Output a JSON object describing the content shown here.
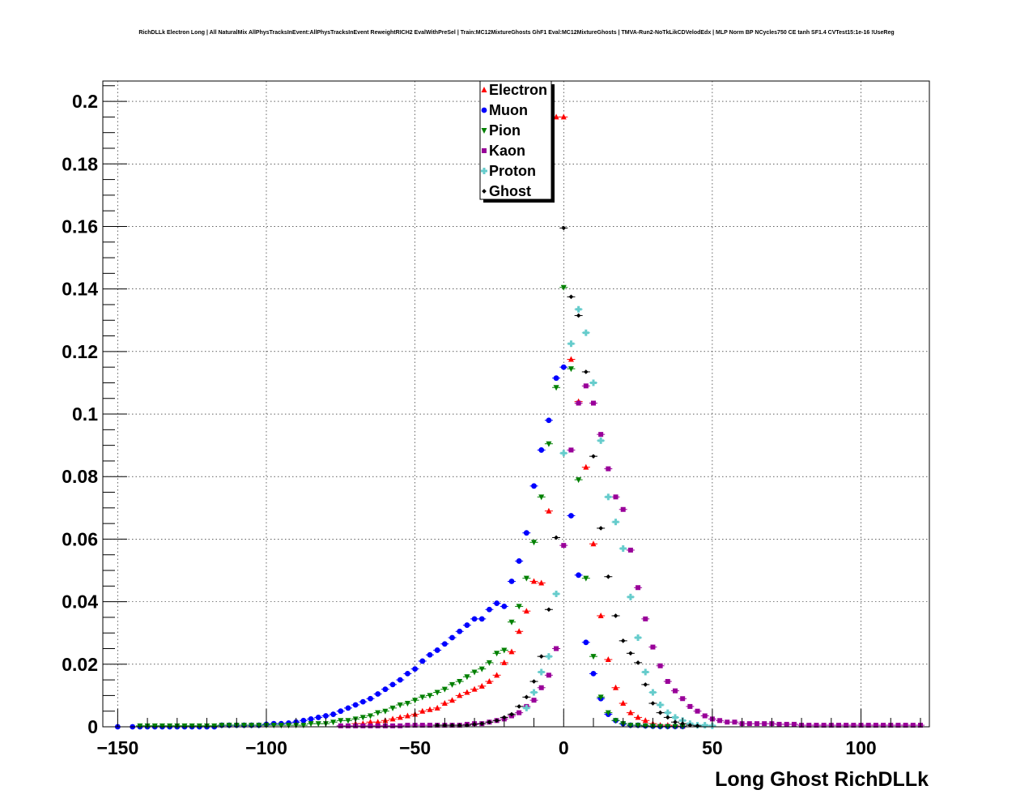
{
  "title": "RichDLLk Electron Long | All NaturalMix AllPhysTracksInEvent:AllPhysTracksInEvent ReweightRICH2 EvalWithPreSel | Train:MC12MixtureGhosts GhF1 Eval:MC12MixtureGhosts | TMVA-Run2-NoTkLikCDVelodEdx | MLP Norm BP NCycles750 CE tanh SF1.4 CVTest15:1e-16 !UseReg",
  "chart_data": {
    "type": "scatter",
    "title": "RichDLLk Electron Long | All NaturalMix AllPhysTracksInEvent:AllPhysTracksInEvent ReweightRICH2 EvalWithPreSel | Train:MC12MixtureGhosts GhF1 Eval:MC12MixtureGhosts | TMVA-Run2-NoTkLikCDVelodEdx | MLP Norm BP NCycles750 CE tanh SF1.4 CVTest15:1e-16 !UseReg",
    "xlabel": "Long Ghost RichDLLk",
    "ylabel": "",
    "xlim": [
      -155,
      123
    ],
    "ylim": [
      0,
      0.2065
    ],
    "grid": true,
    "legend_position": "top-center",
    "x_ticks": [
      -150,
      -100,
      -50,
      0,
      50,
      100
    ],
    "x_tick_labels": [
      "−150",
      "−100",
      "−50",
      "0",
      "50",
      "100"
    ],
    "y_ticks": [
      0,
      0.02,
      0.04,
      0.06,
      0.08,
      0.1,
      0.12,
      0.14,
      0.16,
      0.18,
      0.2
    ],
    "y_tick_labels": [
      "0",
      "0.02",
      "0.04",
      "0.06",
      "0.08",
      "0.1",
      "0.12",
      "0.14",
      "0.16",
      "0.18",
      "0.2"
    ],
    "series": [
      {
        "name": "Electron",
        "color": "#ff0000",
        "marker": "triangle-up",
        "x": [
          -70,
          -67.5,
          -65,
          -62.5,
          -60,
          -57.5,
          -55,
          -52.5,
          -50,
          -47.5,
          -45,
          -42.5,
          -40,
          -37.5,
          -35,
          -32.5,
          -30,
          -27.5,
          -25,
          -22.5,
          -20,
          -17.5,
          -15,
          -12.5,
          -10,
          -7.5,
          -5,
          -2.5,
          0,
          2.5,
          5,
          7.5,
          10,
          12.5,
          15,
          17.5,
          20,
          22.5,
          25,
          27.5,
          30,
          32.5,
          35,
          37.5,
          40
        ],
        "y": [
          0.001,
          0.001,
          0.0015,
          0.0015,
          0.002,
          0.0025,
          0.003,
          0.0035,
          0.004,
          0.005,
          0.0055,
          0.006,
          0.0075,
          0.0085,
          0.01,
          0.011,
          0.012,
          0.013,
          0.0145,
          0.0165,
          0.0205,
          0.024,
          0.0305,
          0.037,
          0.0465,
          0.046,
          0.069,
          0.195,
          0.195,
          0.1175,
          0.104,
          0.083,
          0.0585,
          0.0355,
          0.0215,
          0.0125,
          0.0075,
          0.0045,
          0.003,
          0.002,
          0.001,
          0.0005,
          0.0005,
          0.0003,
          0.0002
        ]
      },
      {
        "name": "Muon",
        "color": "#0000ff",
        "marker": "circle",
        "x": [
          -150,
          -145,
          -142.5,
          -140,
          -137.5,
          -135,
          -132.5,
          -130,
          -127.5,
          -125,
          -122.5,
          -120,
          -117.5,
          -115,
          -112.5,
          -110,
          -107.5,
          -105,
          -102.5,
          -100,
          -97.5,
          -95,
          -92.5,
          -90,
          -87.5,
          -85,
          -82.5,
          -80,
          -77.5,
          -75,
          -72.5,
          -70,
          -67.5,
          -65,
          -62.5,
          -60,
          -57.5,
          -55,
          -52.5,
          -50,
          -47.5,
          -45,
          -42.5,
          -40,
          -37.5,
          -35,
          -32.5,
          -30,
          -27.5,
          -25,
          -22.5,
          -20,
          -17.5,
          -15,
          -12.5,
          -10,
          -7.5,
          -5,
          -2.5,
          0,
          2.5,
          5,
          7.5,
          10,
          12.5,
          15,
          17.5,
          20,
          22.5,
          25,
          27.5,
          30,
          32.5,
          35,
          37.5,
          40
        ],
        "y": [
          0,
          0,
          0,
          0,
          0,
          0,
          0,
          0,
          0,
          0,
          0,
          0,
          0,
          0.0005,
          0.0005,
          0.0005,
          0.0005,
          0.0005,
          0.0005,
          0.0008,
          0.001,
          0.001,
          0.0012,
          0.0015,
          0.002,
          0.0025,
          0.003,
          0.0035,
          0.004,
          0.005,
          0.006,
          0.007,
          0.008,
          0.009,
          0.0105,
          0.012,
          0.0135,
          0.015,
          0.017,
          0.0185,
          0.021,
          0.023,
          0.0245,
          0.0265,
          0.0285,
          0.0305,
          0.0325,
          0.0345,
          0.0345,
          0.0375,
          0.0395,
          0.0385,
          0.0465,
          0.053,
          0.062,
          0.077,
          0.0885,
          0.098,
          0.1115,
          0.115,
          0.0675,
          0.0485,
          0.027,
          0.017,
          0.009,
          0.004,
          0.002,
          0.001,
          0.0005,
          0.0005,
          0.0003,
          0.0002,
          0.0001,
          0.0001,
          0.0001,
          0.0001
        ]
      },
      {
        "name": "Pion",
        "color": "#008000",
        "marker": "triangle-down",
        "x": [
          -142.5,
          -140,
          -137.5,
          -135,
          -132.5,
          -130,
          -127.5,
          -125,
          -122.5,
          -120,
          -117.5,
          -115,
          -112.5,
          -110,
          -107.5,
          -105,
          -102.5,
          -100,
          -97.5,
          -95,
          -92.5,
          -90,
          -87.5,
          -85,
          -82.5,
          -80,
          -77.5,
          -75,
          -72.5,
          -70,
          -67.5,
          -65,
          -62.5,
          -60,
          -57.5,
          -55,
          -52.5,
          -50,
          -47.5,
          -45,
          -42.5,
          -40,
          -37.5,
          -35,
          -32.5,
          -30,
          -27.5,
          -25,
          -22.5,
          -20,
          -17.5,
          -15,
          -12.5,
          -10,
          -7.5,
          -5,
          -2.5,
          0,
          2.5,
          5,
          7.5,
          10,
          12.5,
          15,
          17.5,
          20,
          22.5,
          25,
          27.5,
          30,
          32.5,
          35,
          37.5,
          40
        ],
        "y": [
          0.0003,
          0.0003,
          0.0003,
          0.0003,
          0.0003,
          0.0003,
          0.0003,
          0.0003,
          0.0003,
          0.0003,
          0.0003,
          0.0005,
          0.0005,
          0.0005,
          0.0005,
          0.0005,
          0.0005,
          0.0005,
          0.0005,
          0.0005,
          0.0005,
          0.0005,
          0.0005,
          0.001,
          0.001,
          0.001,
          0.0015,
          0.002,
          0.002,
          0.0025,
          0.003,
          0.0035,
          0.0045,
          0.005,
          0.006,
          0.007,
          0.0075,
          0.0085,
          0.0095,
          0.01,
          0.011,
          0.012,
          0.0135,
          0.0145,
          0.016,
          0.0175,
          0.0185,
          0.0205,
          0.0235,
          0.0245,
          0.0335,
          0.0385,
          0.0475,
          0.059,
          0.0735,
          0.0905,
          0.1085,
          0.1405,
          0.1145,
          0.079,
          0.0475,
          0.0225,
          0.0095,
          0.0045,
          0.002,
          0.001,
          0.0005,
          0.0005,
          0.0003,
          0.0002,
          0.0001,
          0.0001,
          0.0001,
          0.0001
        ]
      },
      {
        "name": "Kaon",
        "color": "#990099",
        "marker": "square",
        "x": [
          -75,
          -72.5,
          -70,
          -67.5,
          -65,
          -62.5,
          -60,
          -57.5,
          -55,
          -52.5,
          -50,
          -47.5,
          -45,
          -42.5,
          -40,
          -37.5,
          -35,
          -32.5,
          -30,
          -27.5,
          -25,
          -22.5,
          -20,
          -17.5,
          -15,
          -12.5,
          -10,
          -7.5,
          -5,
          -2.5,
          0,
          2.5,
          5,
          7.5,
          10,
          12.5,
          15,
          17.5,
          20,
          22.5,
          25,
          27.5,
          30,
          32.5,
          35,
          37.5,
          40,
          42.5,
          45,
          47.5,
          50,
          52.5,
          55,
          57.5,
          60,
          62.5,
          65,
          67.5,
          70,
          72.5,
          75,
          77.5,
          80,
          82.5,
          85,
          87.5,
          90,
          92.5,
          95,
          97.5,
          100,
          102.5,
          105,
          107.5,
          110,
          112.5,
          115,
          117.5,
          120
        ],
        "y": [
          0.0003,
          0.0003,
          0.0003,
          0.0003,
          0.0003,
          0.0003,
          0.0003,
          0.0003,
          0.0003,
          0.0005,
          0.0005,
          0.0005,
          0.0005,
          0.0005,
          0.0005,
          0.0005,
          0.0005,
          0.0008,
          0.001,
          0.001,
          0.0015,
          0.002,
          0.0025,
          0.0035,
          0.0045,
          0.0065,
          0.0085,
          0.0125,
          0.0165,
          0.025,
          0.058,
          0.0885,
          0.1035,
          0.109,
          0.1035,
          0.0935,
          0.0825,
          0.0735,
          0.0695,
          0.0565,
          0.0445,
          0.0345,
          0.0255,
          0.0195,
          0.0145,
          0.0115,
          0.009,
          0.0065,
          0.005,
          0.0035,
          0.0025,
          0.002,
          0.0015,
          0.0015,
          0.001,
          0.001,
          0.001,
          0.001,
          0.001,
          0.0008,
          0.0008,
          0.0008,
          0.0005,
          0.0005,
          0.0005,
          0.0005,
          0.0005,
          0.0005,
          0.0005,
          0.0005,
          0.0005,
          0.0005,
          0.0005,
          0.0005,
          0.0005,
          0.0005,
          0.0005,
          0.0005,
          0.0005
        ]
      },
      {
        "name": "Proton",
        "color": "#66cccc",
        "marker": "cross",
        "x": [
          -12.5,
          -10,
          -7.5,
          -5,
          -2.5,
          0,
          2.5,
          5,
          7.5,
          10,
          12.5,
          15,
          17.5,
          20,
          22.5,
          25,
          27.5,
          30,
          32.5,
          35,
          37.5,
          40,
          42.5,
          45,
          47.5,
          50
        ],
        "y": [
          0.006,
          0.011,
          0.0175,
          0.0225,
          0.0425,
          0.0875,
          0.1225,
          0.1335,
          0.126,
          0.11,
          0.0915,
          0.0735,
          0.0655,
          0.057,
          0.0415,
          0.0285,
          0.0175,
          0.011,
          0.007,
          0.0045,
          0.003,
          0.002,
          0.001,
          0.0005,
          0.0005,
          0.0003
        ]
      },
      {
        "name": "Ghost",
        "color": "#000000",
        "marker": "star",
        "x": [
          -42.5,
          -40,
          -37.5,
          -35,
          -32.5,
          -30,
          -27.5,
          -25,
          -22.5,
          -20,
          -17.5,
          -15,
          -12.5,
          -10,
          -7.5,
          -5,
          -2.5,
          0,
          2.5,
          5,
          7.5,
          10,
          12.5,
          15,
          17.5,
          20,
          22.5,
          25,
          27.5,
          30,
          32.5,
          35,
          37.5,
          40,
          42.5,
          45
        ],
        "y": [
          0.0005,
          0.0005,
          0.0005,
          0.0005,
          0.0005,
          0.0008,
          0.001,
          0.0015,
          0.002,
          0.003,
          0.004,
          0.0065,
          0.0095,
          0.0145,
          0.0225,
          0.0375,
          0.0605,
          0.1595,
          0.1375,
          0.1315,
          0.1135,
          0.0865,
          0.0635,
          0.048,
          0.0355,
          0.0275,
          0.0235,
          0.0205,
          0.0135,
          0.0075,
          0.0045,
          0.003,
          0.0015,
          0.001,
          0.0005,
          0.0003
        ]
      }
    ]
  }
}
